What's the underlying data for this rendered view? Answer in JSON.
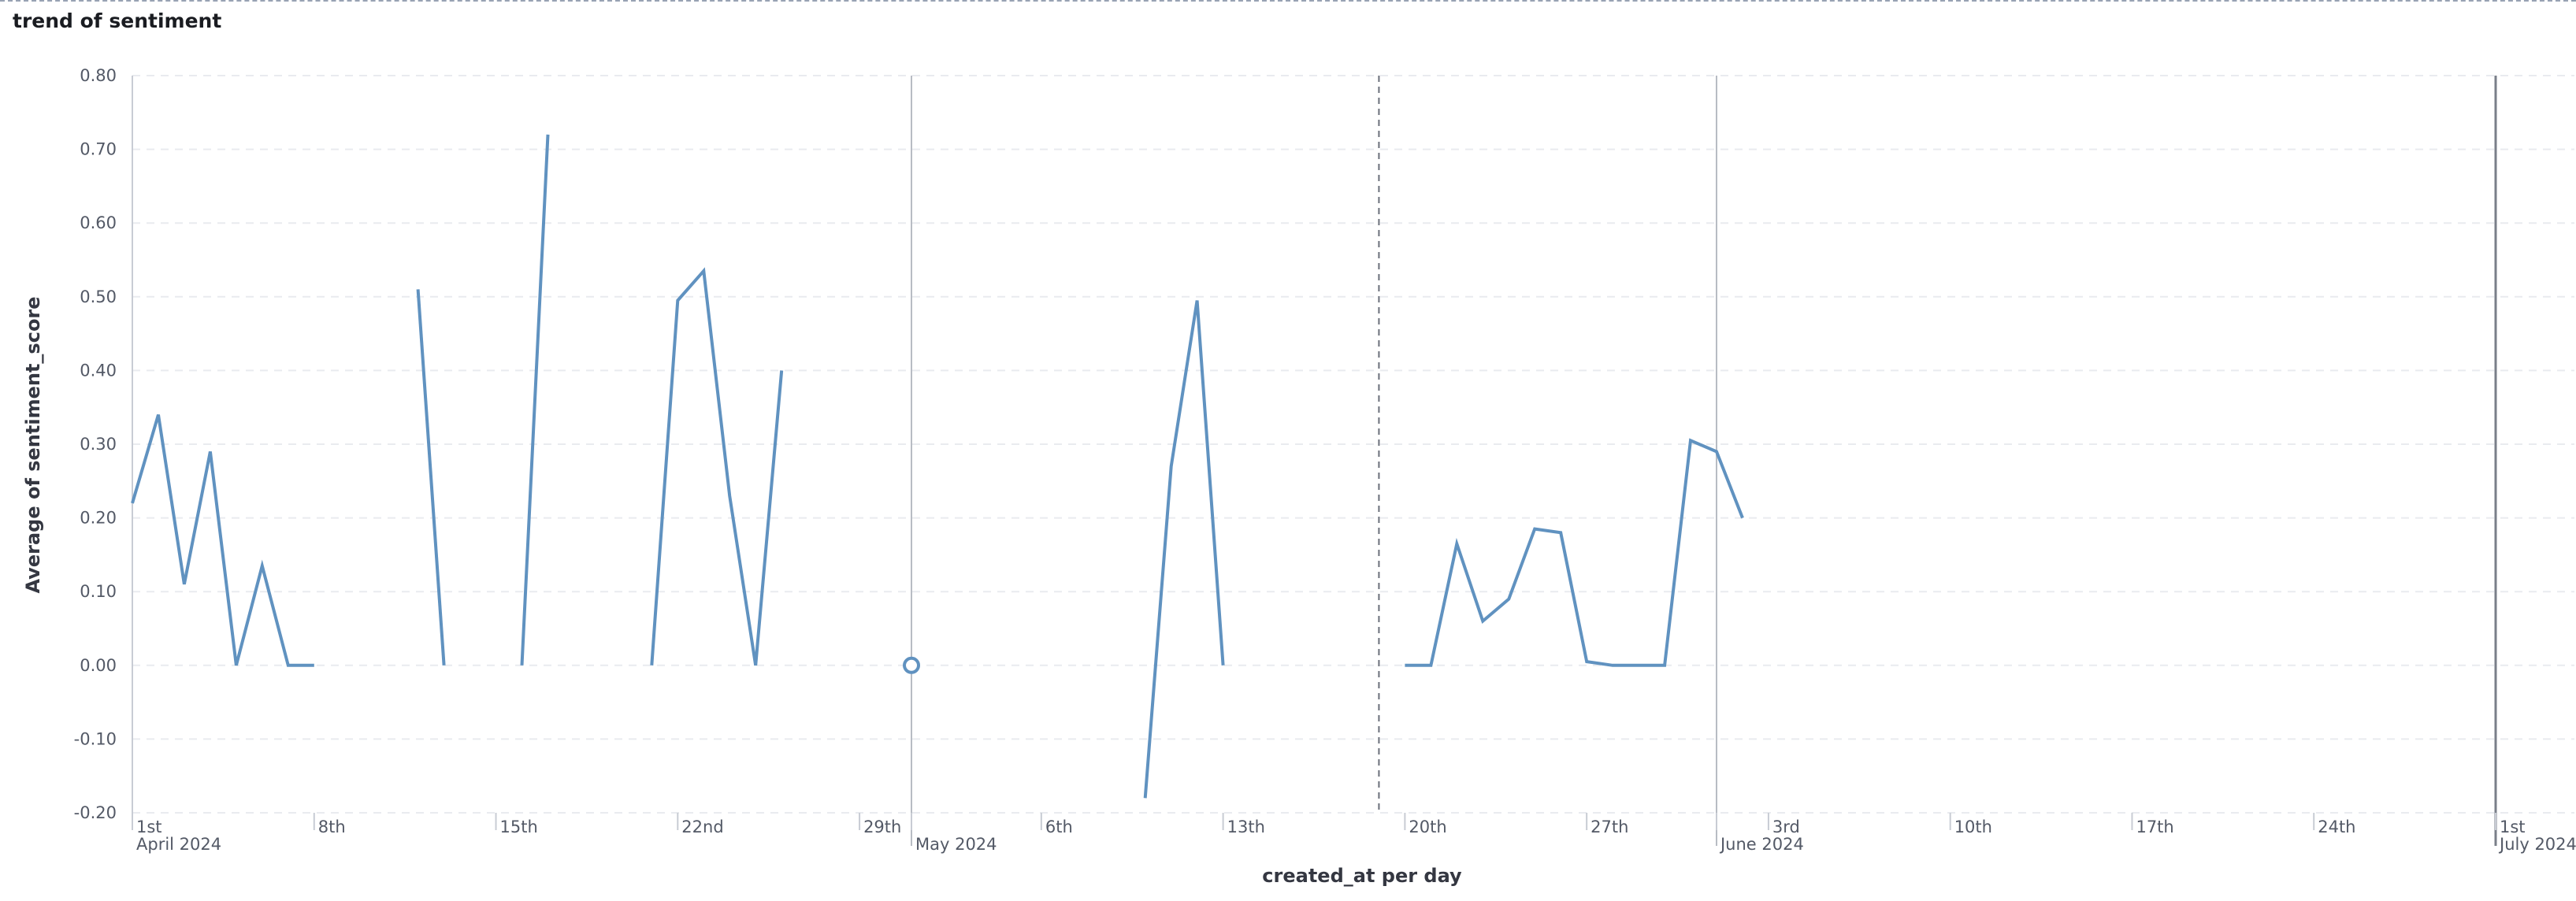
{
  "panel": {
    "title": "trend of sentiment"
  },
  "colors": {
    "line": "#6092c0",
    "grid": "#e9ebef",
    "axis": "#c8ccd4",
    "month_line": "#b8bcc4",
    "text": "#535966"
  },
  "chart_data": {
    "type": "line",
    "title": "trend of sentiment",
    "xlabel": "created_at per day",
    "ylabel": "Average of sentiment_score",
    "ylim": [
      -0.2,
      0.8
    ],
    "y_ticks": [
      "0.80",
      "0.70",
      "0.60",
      "0.50",
      "0.40",
      "0.30",
      "0.20",
      "0.10",
      "0.00",
      "-0.10",
      "-0.20"
    ],
    "x_domain": [
      "2024-04-01",
      "2024-07-01"
    ],
    "x_ticks": [
      {
        "date": "2024-04-01",
        "label": "1st",
        "month_label": "April 2024"
      },
      {
        "date": "2024-04-08",
        "label": "8th"
      },
      {
        "date": "2024-04-15",
        "label": "15th"
      },
      {
        "date": "2024-04-22",
        "label": "22nd"
      },
      {
        "date": "2024-04-29",
        "label": "29th"
      },
      {
        "date": "2024-05-01",
        "label": "",
        "month_label": "May 2024"
      },
      {
        "date": "2024-05-06",
        "label": "6th"
      },
      {
        "date": "2024-05-13",
        "label": "13th"
      },
      {
        "date": "2024-05-20",
        "label": "20th"
      },
      {
        "date": "2024-05-27",
        "label": "27th"
      },
      {
        "date": "2024-06-01",
        "label": "",
        "month_label": "June 2024"
      },
      {
        "date": "2024-06-03",
        "label": "3rd"
      },
      {
        "date": "2024-06-10",
        "label": "10th"
      },
      {
        "date": "2024-06-17",
        "label": "17th"
      },
      {
        "date": "2024-06-24",
        "label": "24th"
      },
      {
        "date": "2024-07-01",
        "label": "1st",
        "month_label": "July 2024"
      }
    ],
    "month_boundaries": [
      "2024-05-01",
      "2024-06-01",
      "2024-07-01"
    ],
    "marker_line_date": "2024-05-19",
    "series": [
      {
        "segments": [
          [
            [
              "2024-04-01",
              0.22
            ],
            [
              "2024-04-02",
              0.34
            ],
            [
              "2024-04-03",
              0.11
            ],
            [
              "2024-04-04",
              0.29
            ],
            [
              "2024-04-05",
              0.0
            ],
            [
              "2024-04-06",
              0.135
            ],
            [
              "2024-04-07",
              0.0
            ],
            [
              "2024-04-08",
              0.0
            ]
          ],
          [
            [
              "2024-04-12",
              0.51
            ],
            [
              "2024-04-13",
              0.0
            ]
          ],
          [
            [
              "2024-04-16",
              0.0
            ],
            [
              "2024-04-17",
              0.72
            ]
          ],
          [
            [
              "2024-04-21",
              0.0
            ],
            [
              "2024-04-22",
              0.495
            ],
            [
              "2024-04-23",
              0.535
            ],
            [
              "2024-04-24",
              0.23
            ],
            [
              "2024-04-25",
              0.0
            ],
            [
              "2024-04-26",
              0.4
            ]
          ],
          [
            [
              "2024-05-01",
              0.0
            ]
          ],
          [
            [
              "2024-05-10",
              -0.18
            ],
            [
              "2024-05-11",
              0.27
            ],
            [
              "2024-05-12",
              0.495
            ],
            [
              "2024-05-13",
              0.0
            ]
          ],
          [
            [
              "2024-05-20",
              0.0
            ],
            [
              "2024-05-21",
              0.0
            ],
            [
              "2024-05-22",
              0.165
            ],
            [
              "2024-05-23",
              0.06
            ],
            [
              "2024-05-24",
              0.09
            ],
            [
              "2024-05-25",
              0.185
            ],
            [
              "2024-05-26",
              0.18
            ],
            [
              "2024-05-27",
              0.005
            ],
            [
              "2024-05-28",
              0.0
            ],
            [
              "2024-05-29",
              0.0
            ],
            [
              "2024-05-30",
              0.0
            ],
            [
              "2024-05-31",
              0.305
            ],
            [
              "2024-06-01",
              0.29
            ],
            [
              "2024-06-02",
              0.2
            ]
          ]
        ]
      }
    ]
  }
}
